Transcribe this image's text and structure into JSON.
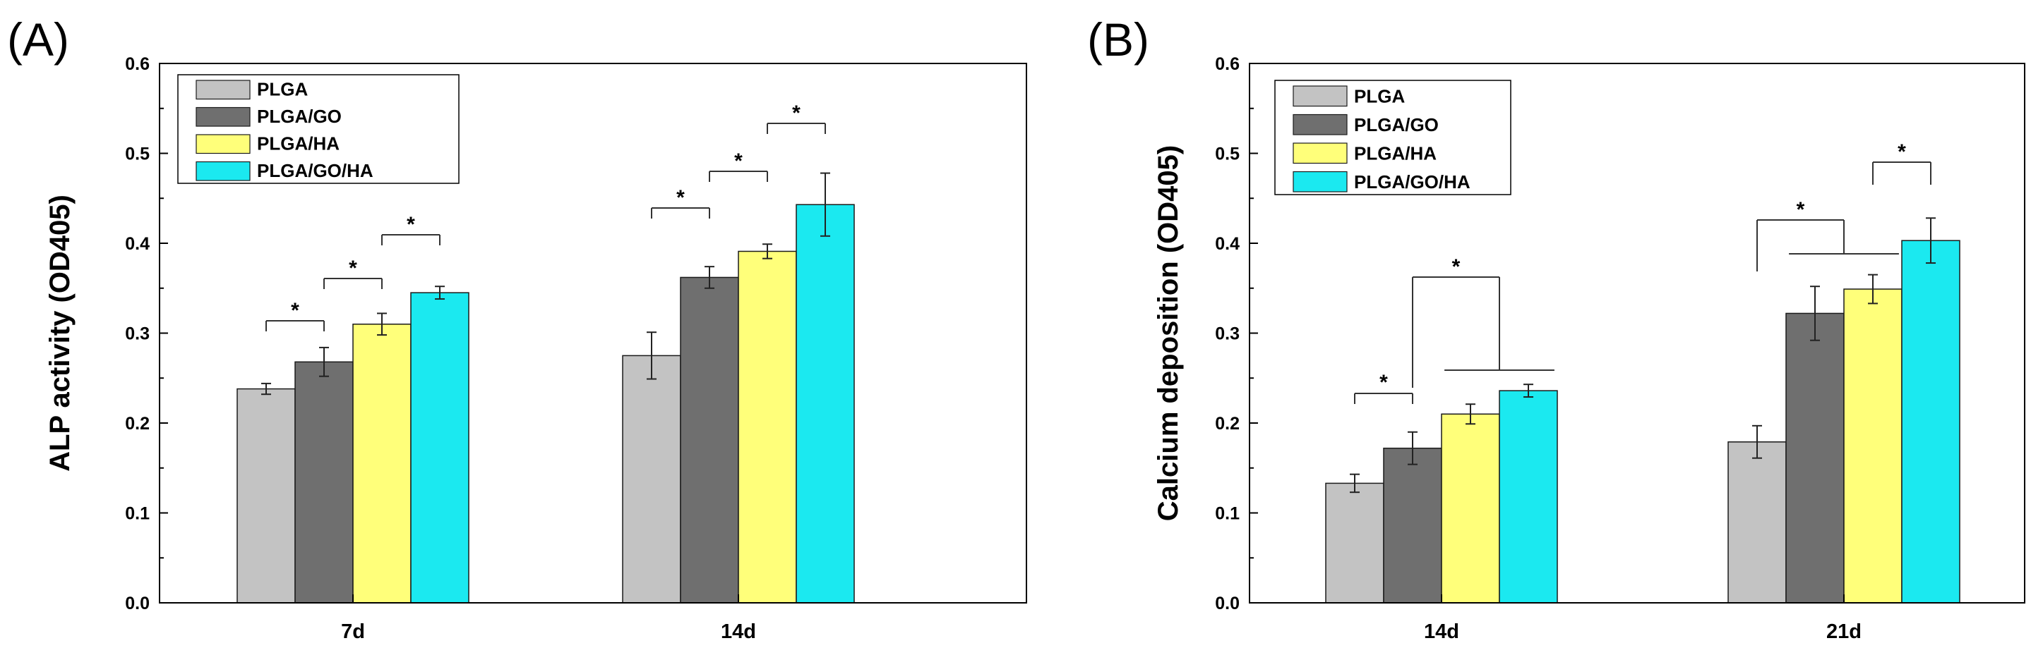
{
  "panels": [
    {
      "label": "(A)",
      "chart_data": {
        "type": "bar",
        "title": "",
        "xlabel": "",
        "ylabel": "ALP activity (OD405)",
        "ylim": [
          0,
          0.6
        ],
        "yticks": [
          "0.0",
          "0.1",
          "0.2",
          "0.3",
          "0.4",
          "0.5",
          "0.6"
        ],
        "categories": [
          "7d",
          "14d"
        ],
        "series": [
          {
            "name": "PLGA",
            "color": "#c3c3c3",
            "values": [
              0.238,
              0.275
            ],
            "errors": [
              0.006,
              0.026
            ]
          },
          {
            "name": "PLGA/GO",
            "color": "#6f6f6f",
            "values": [
              0.268,
              0.362
            ],
            "errors": [
              0.016,
              0.012
            ]
          },
          {
            "name": "PLGA/HA",
            "color": "#ffff7a",
            "values": [
              0.31,
              0.391
            ],
            "errors": [
              0.012,
              0.008
            ]
          },
          {
            "name": "PLGA/GO/HA",
            "color": "#1be9f0",
            "values": [
              0.345,
              0.443
            ],
            "errors": [
              0.007,
              0.035
            ]
          }
        ],
        "legend_position": "top-left",
        "annotations": [
          {
            "text": "*",
            "category": 0,
            "from": 0,
            "to": 1
          },
          {
            "text": "*",
            "category": 0,
            "from": 1,
            "to": 2
          },
          {
            "text": "*",
            "category": 0,
            "from": 2,
            "to": 3
          },
          {
            "text": "*",
            "category": 1,
            "from": 0,
            "to": 1
          },
          {
            "text": "*",
            "category": 1,
            "from": 1,
            "to": 2
          },
          {
            "text": "*",
            "category": 1,
            "from": 2,
            "to": 3
          }
        ]
      }
    },
    {
      "label": "(B)",
      "chart_data": {
        "type": "bar",
        "title": "",
        "xlabel": "",
        "ylabel": "Calcium deposition (OD405)",
        "ylim": [
          0,
          0.6
        ],
        "yticks": [
          "0.0",
          "0.1",
          "0.2",
          "0.3",
          "0.4",
          "0.5",
          "0.6"
        ],
        "categories": [
          "14d",
          "21d"
        ],
        "series": [
          {
            "name": "PLGA",
            "color": "#c3c3c3",
            "values": [
              0.133,
              0.179
            ],
            "errors": [
              0.01,
              0.018
            ]
          },
          {
            "name": "PLGA/GO",
            "color": "#6f6f6f",
            "values": [
              0.172,
              0.322
            ],
            "errors": [
              0.018,
              0.03
            ]
          },
          {
            "name": "PLGA/HA",
            "color": "#ffff7a",
            "values": [
              0.21,
              0.349
            ],
            "errors": [
              0.011,
              0.016
            ]
          },
          {
            "name": "PLGA/GO/HA",
            "color": "#1be9f0",
            "values": [
              0.236,
              0.403
            ],
            "errors": [
              0.007,
              0.025
            ]
          }
        ],
        "legend_position": "top-left",
        "annotations": [
          {
            "text": "*",
            "category": 0,
            "from": 0,
            "to": 1
          },
          {
            "text": "*",
            "category": 0,
            "from": 1,
            "to": [
              2,
              3
            ]
          },
          {
            "text": "*",
            "category": 1,
            "from": 0,
            "to": [
              1,
              2
            ]
          },
          {
            "text": "*",
            "category": 1,
            "from": 2,
            "to": 3
          }
        ]
      }
    }
  ]
}
